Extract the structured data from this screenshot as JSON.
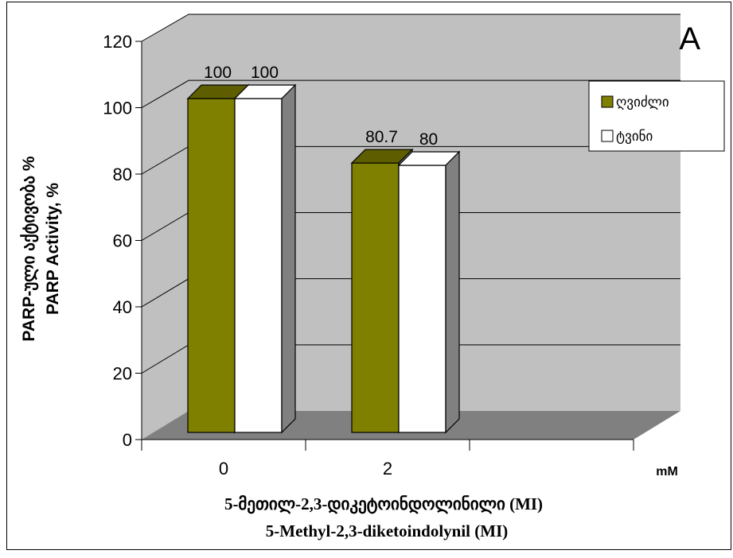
{
  "chart_data": {
    "type": "bar",
    "panel_letter": "A",
    "categories": [
      "0",
      "2"
    ],
    "series": [
      {
        "name": "ღვიძლი",
        "values": [
          100,
          80.7
        ],
        "value_labels": [
          "100",
          "80.7"
        ],
        "color": "#808000"
      },
      {
        "name": "ტვინი",
        "values": [
          100,
          80
        ],
        "value_labels": [
          "100",
          "80"
        ],
        "color": "#ffffff"
      }
    ],
    "ylim": [
      0,
      120
    ],
    "yticks": [
      "0",
      "20",
      "40",
      "60",
      "80",
      "100",
      "120"
    ],
    "ylabel_lines": [
      "PARP-ული აქტივობა %",
      "PARP Activity, %"
    ],
    "xlabel_lines": [
      "5-მეთილ-2,3-დიკეტოინდოლინილი (MI)",
      "5-Methyl-2,3-diketoindolynil (MI)"
    ],
    "x_unit": "mM",
    "gridlines": true,
    "legend_position": "top-right",
    "colors": {
      "wall": "#c0c0c0",
      "floor": "#808080",
      "side_dark": "#808080"
    }
  }
}
